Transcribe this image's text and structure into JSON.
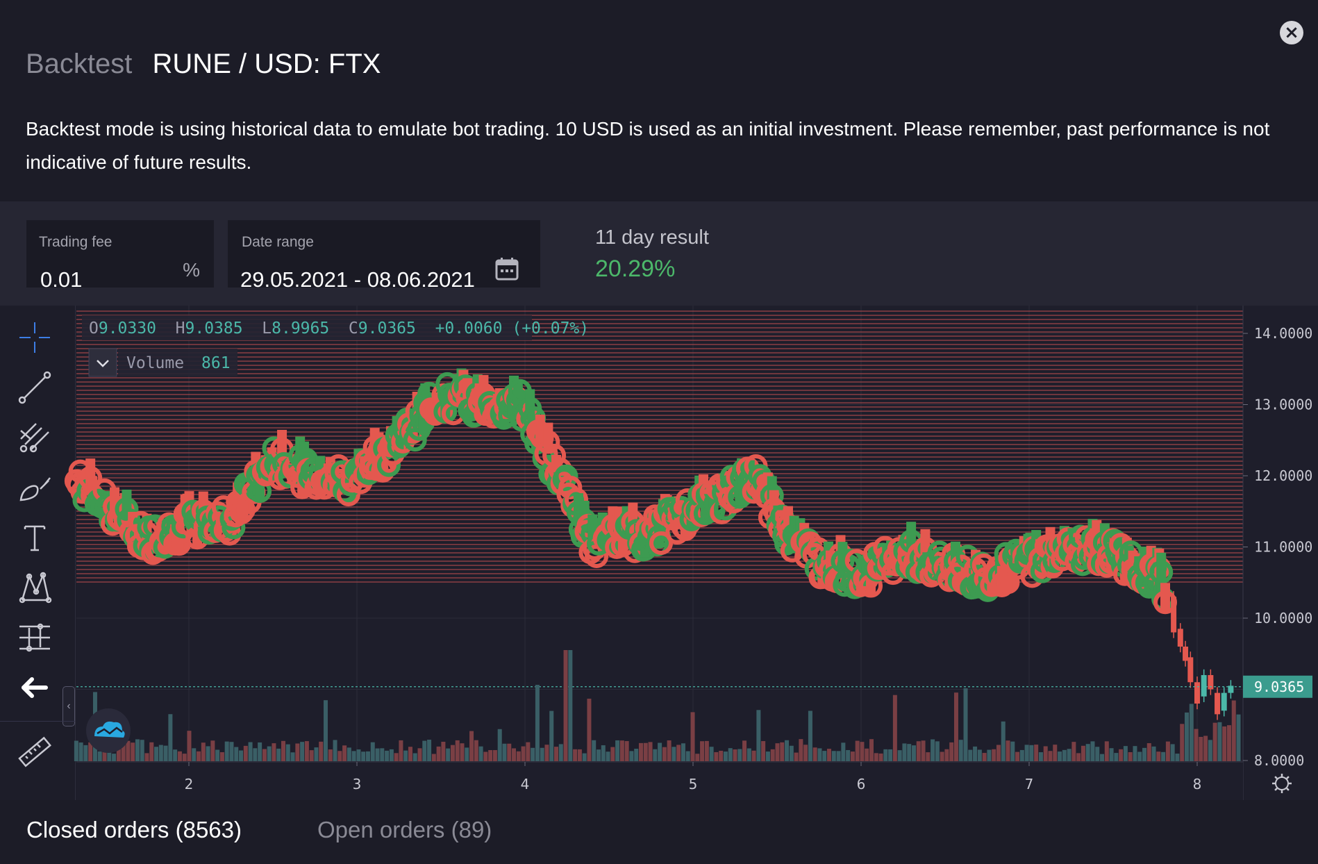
{
  "header": {
    "muted_title": "Backtest",
    "title": "RUNE / USD: FTX",
    "close_icon": "close-icon",
    "description": "Backtest mode is using historical data to emulate bot trading. 10 USD is used as an initial investment. Please remember, past performance is not indicative of future results."
  },
  "fee": {
    "label": "Trading fee",
    "value": "0.01",
    "unit": "%"
  },
  "date_range": {
    "label": "Date range",
    "value": "29.05.2021 - 08.06.2021",
    "icon": "calendar-icon"
  },
  "result": {
    "label": "11 day result",
    "value": "20.29%",
    "color": "#4cb86a"
  },
  "toolbar": {
    "tools": [
      "crosshair-icon",
      "trend-line-icon",
      "pitchfork-icon",
      "brush-icon",
      "text-icon",
      "pattern-icon",
      "prediction-icon",
      "back-arrow-icon",
      "ruler-icon"
    ]
  },
  "legend": {
    "ohlc": {
      "o_label": "O",
      "o_value": "9.0330",
      "h_label": "H",
      "h_value": "9.0385",
      "l_label": "L",
      "l_value": "8.9965",
      "c_label": "C",
      "c_value": "9.0365",
      "change": "+0.0060 (+0.07%)"
    },
    "volume_label": "Volume",
    "volume_value": "861"
  },
  "chart_data": {
    "type": "candlestick",
    "x_tick_labels": [
      "2",
      "3",
      "4",
      "5",
      "6",
      "7",
      "8"
    ],
    "y_tick_labels": [
      "14.0000",
      "13.0000",
      "12.0000",
      "11.0000",
      "10.0000",
      "9.0000",
      "8.0000"
    ],
    "ylim": [
      8.0,
      14.0
    ],
    "last_price": "9.0365",
    "close_series": {
      "x": [
        1.35,
        1.5,
        1.75,
        2.0,
        2.25,
        2.5,
        2.75,
        3.0,
        3.25,
        3.5,
        3.75,
        4.0,
        4.1,
        4.25,
        4.4,
        4.5,
        4.75,
        5.0,
        5.25,
        5.4,
        5.5,
        5.75,
        6.0,
        6.25,
        6.5,
        6.75,
        7.0,
        7.25,
        7.5,
        7.75,
        7.85,
        7.9,
        8.0,
        8.1,
        8.2
      ],
      "y": [
        11.9,
        11.6,
        11.1,
        11.3,
        11.4,
        12.2,
        12.0,
        11.95,
        12.5,
        13.1,
        13.0,
        13.0,
        12.4,
        11.9,
        11.0,
        11.1,
        11.2,
        11.5,
        11.8,
        12.0,
        11.3,
        10.8,
        10.6,
        10.9,
        10.7,
        10.6,
        10.8,
        11.0,
        10.9,
        10.6,
        10.2,
        9.7,
        9.2,
        8.8,
        9.0365
      ]
    },
    "up_color": "#3d9b51",
    "down_color": "#e4584f",
    "volume_up_color": "#3a5f66",
    "volume_down_color": "#7a3f44"
  },
  "tabs": {
    "closed": "Closed orders (8563)",
    "open": "Open orders (89)"
  }
}
